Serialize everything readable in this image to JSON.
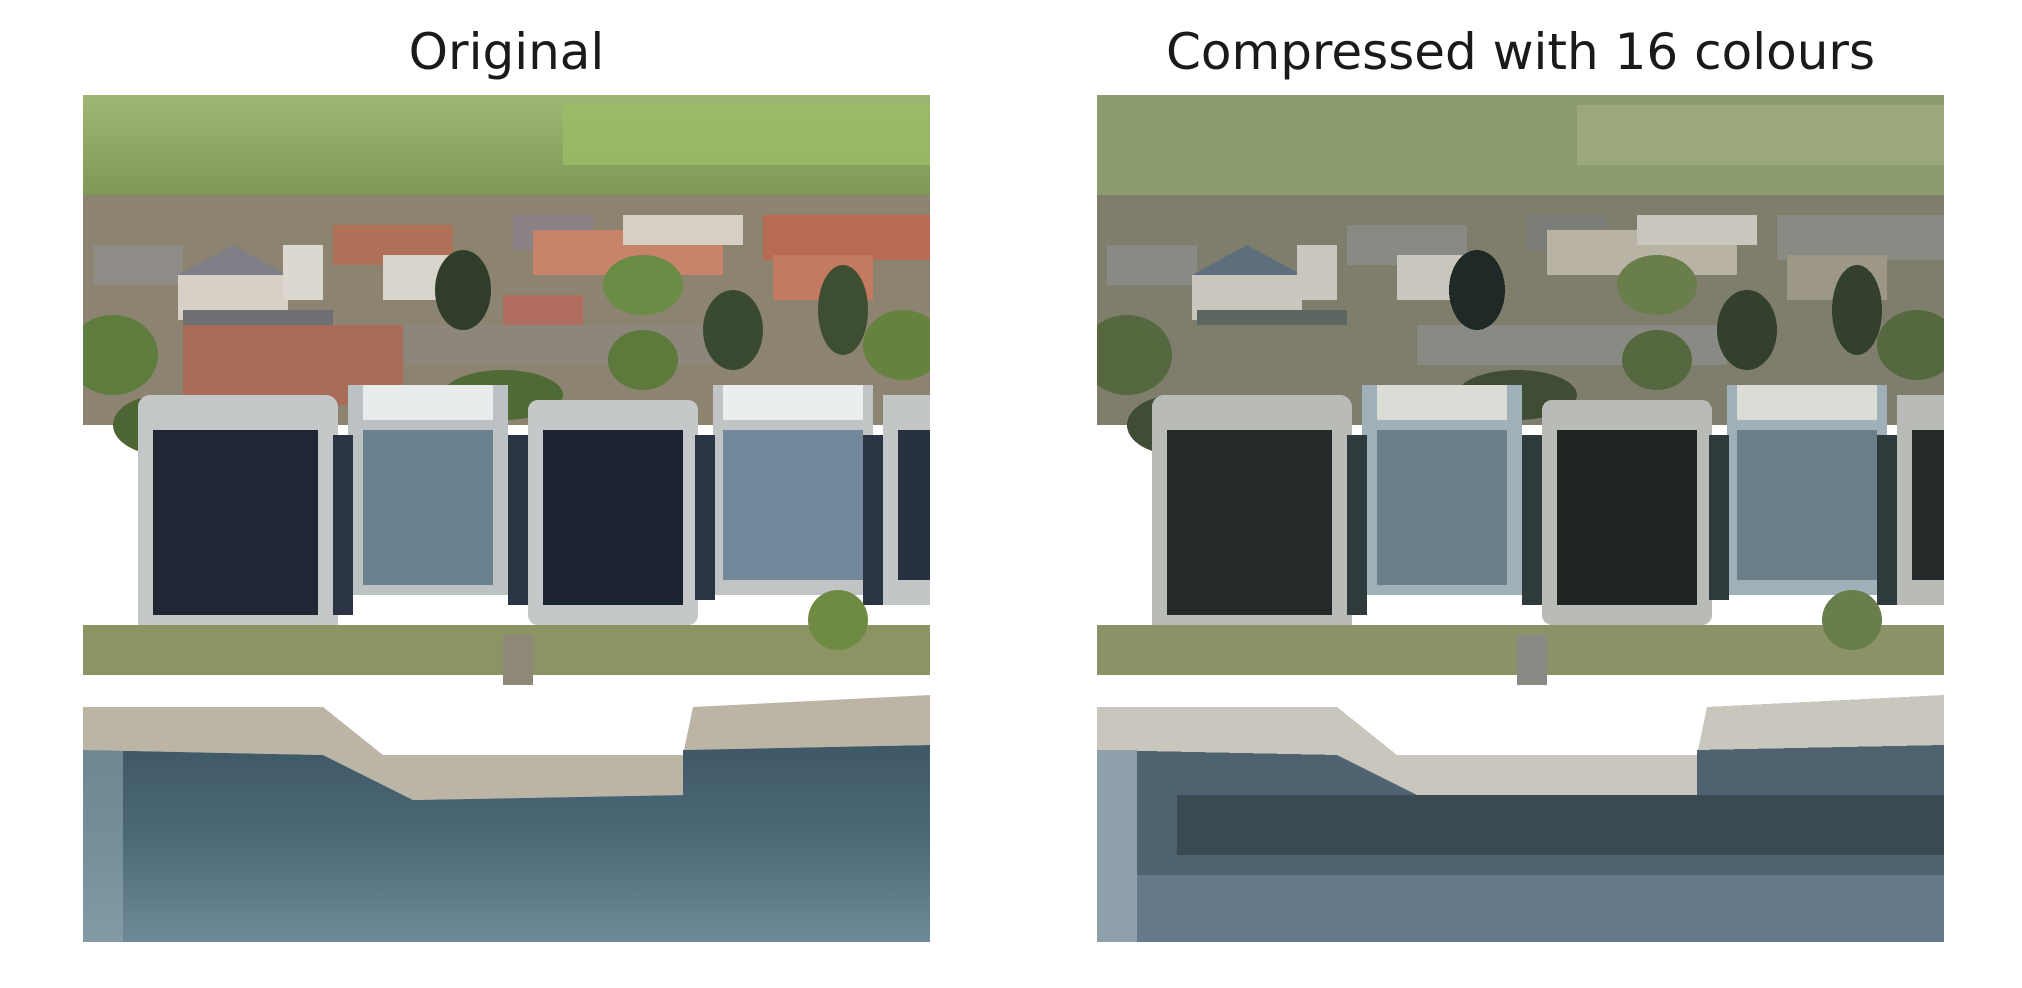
{
  "figure": {
    "panels": [
      {
        "title": "Original"
      },
      {
        "title": "Compressed with 16 colours"
      }
    ]
  },
  "palette": {
    "field_green": "#8aa860",
    "field_light": "#a7bf78",
    "roof_red": "#b87560",
    "roof_grey": "#8d8a8a",
    "house_white": "#d8d3cc",
    "tree_dark": "#3c4a32",
    "building_frame": "#c9cccd",
    "glass_dark": "#1f2733",
    "glass_blue": "#6d8898",
    "lawn": "#7f9a55",
    "promenade": "#b9b2a3",
    "water": "#4a6574",
    "water_light": "#7f97a2"
  }
}
